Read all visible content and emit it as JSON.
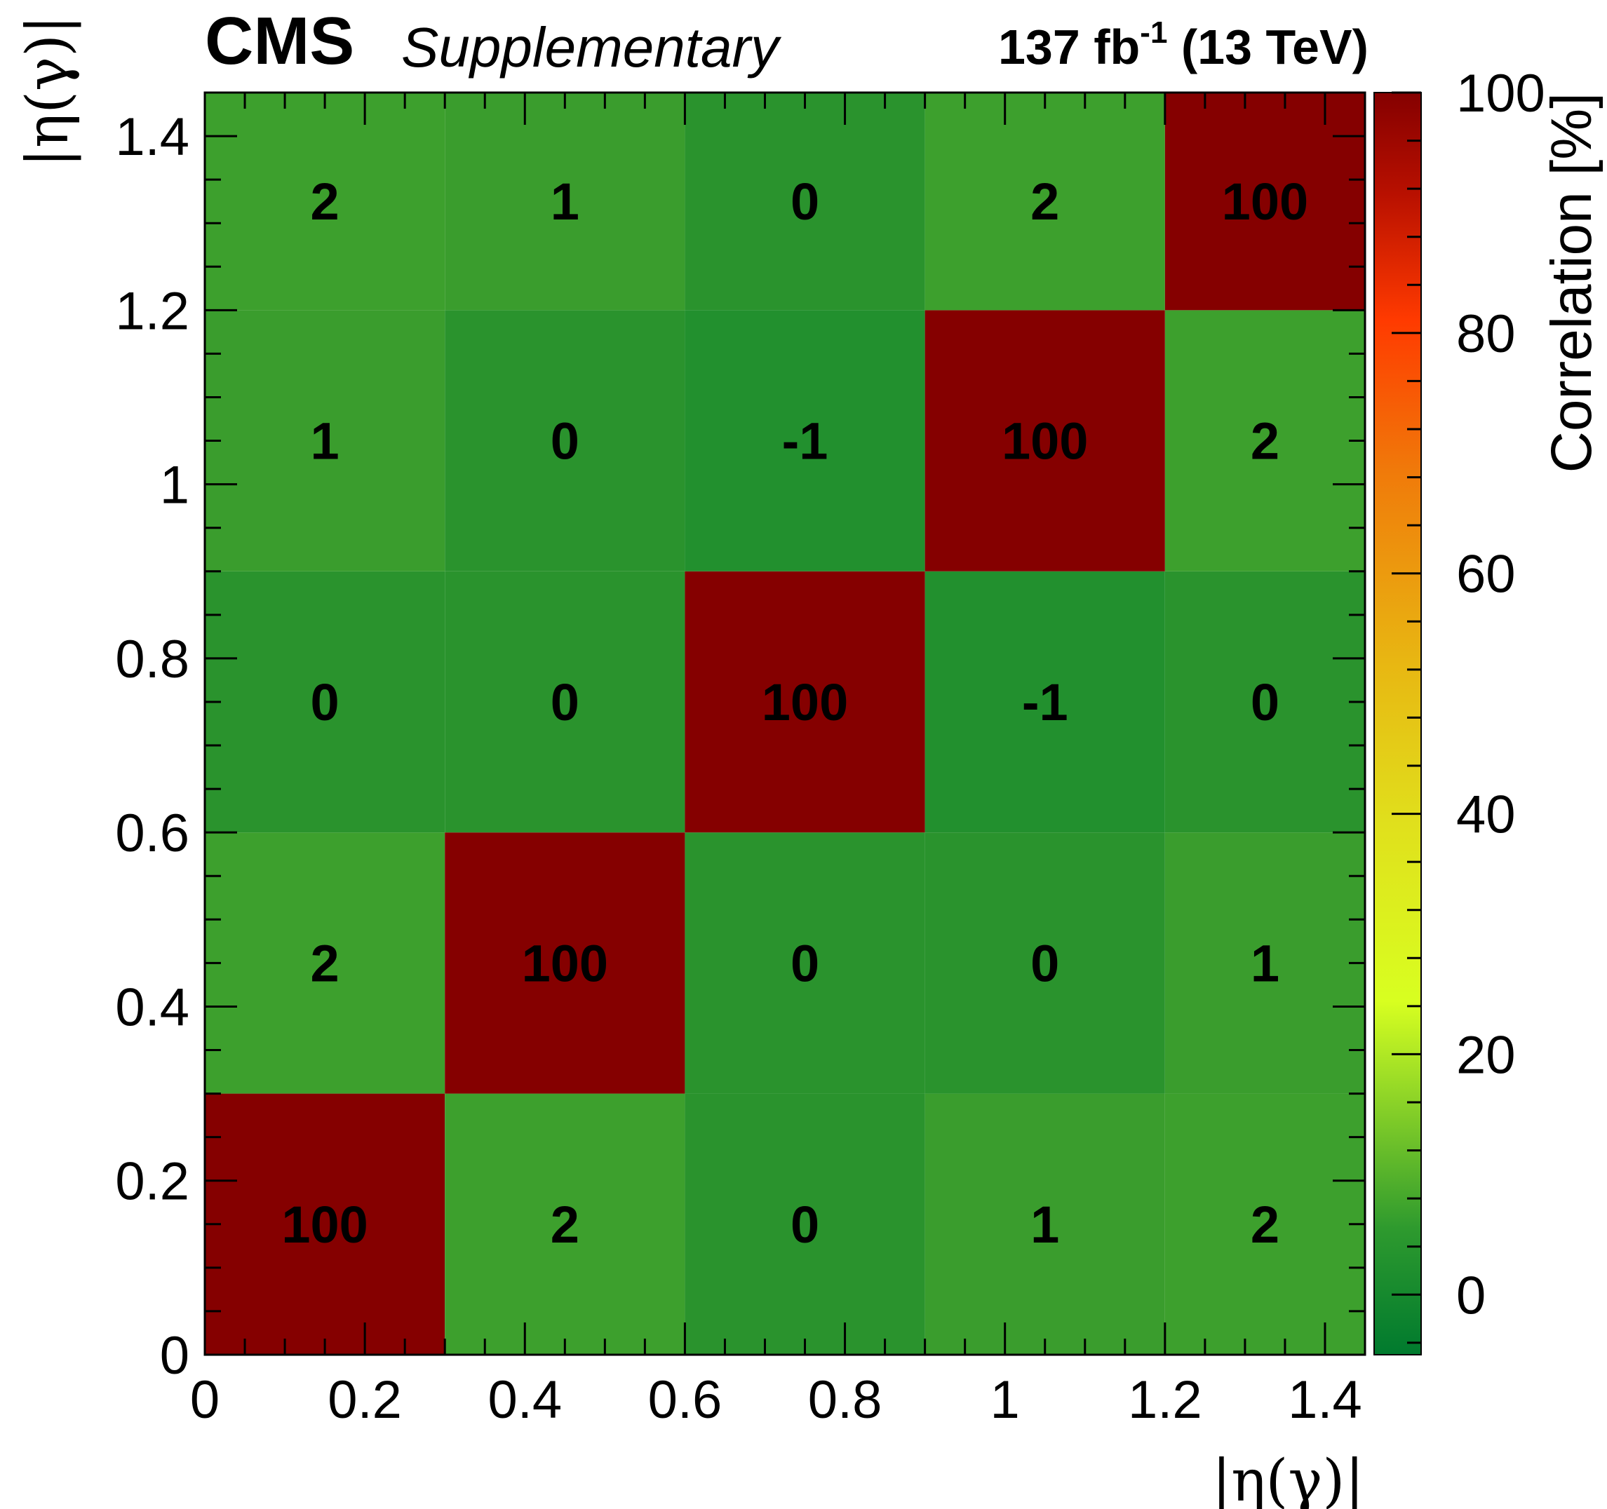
{
  "header": {
    "experiment": "CMS",
    "tag": "Supplementary",
    "lumi_value": "137 fb",
    "lumi_exp": "-1",
    "lumi_energy": "(13 TeV)"
  },
  "chart_data": {
    "type": "heatmap",
    "title": "",
    "xlabel": "|η(γ)|",
    "ylabel": "|η(γ)|",
    "zlabel": "Correlation [%]",
    "x_edges": [
      0,
      0.3,
      0.6,
      0.9,
      1.2,
      1.45
    ],
    "y_edges": [
      0,
      0.3,
      0.6,
      0.9,
      1.2,
      1.45
    ],
    "xlim": [
      0,
      1.45
    ],
    "ylim": [
      0,
      1.45
    ],
    "zlim": [
      -5,
      100
    ],
    "x_ticks": [
      "0",
      "0.2",
      "0.4",
      "0.6",
      "0.8",
      "1",
      "1.2",
      "1.4"
    ],
    "y_ticks": [
      "0",
      "0.2",
      "0.4",
      "0.6",
      "0.8",
      "1",
      "1.2",
      "1.4"
    ],
    "z_ticks": [
      "0",
      "20",
      "40",
      "60",
      "80",
      "100"
    ],
    "values": [
      [
        100,
        2,
        0,
        1,
        2
      ],
      [
        2,
        100,
        0,
        0,
        1
      ],
      [
        0,
        0,
        100,
        -1,
        0
      ],
      [
        1,
        0,
        -1,
        100,
        2
      ],
      [
        2,
        1,
        0,
        2,
        100
      ]
    ],
    "colors": {
      "diag": "#850000",
      "pos2": "#3da02d",
      "pos1": "#3a9d2d",
      "zero": "#2a932d",
      "neg": "#22902e"
    }
  }
}
